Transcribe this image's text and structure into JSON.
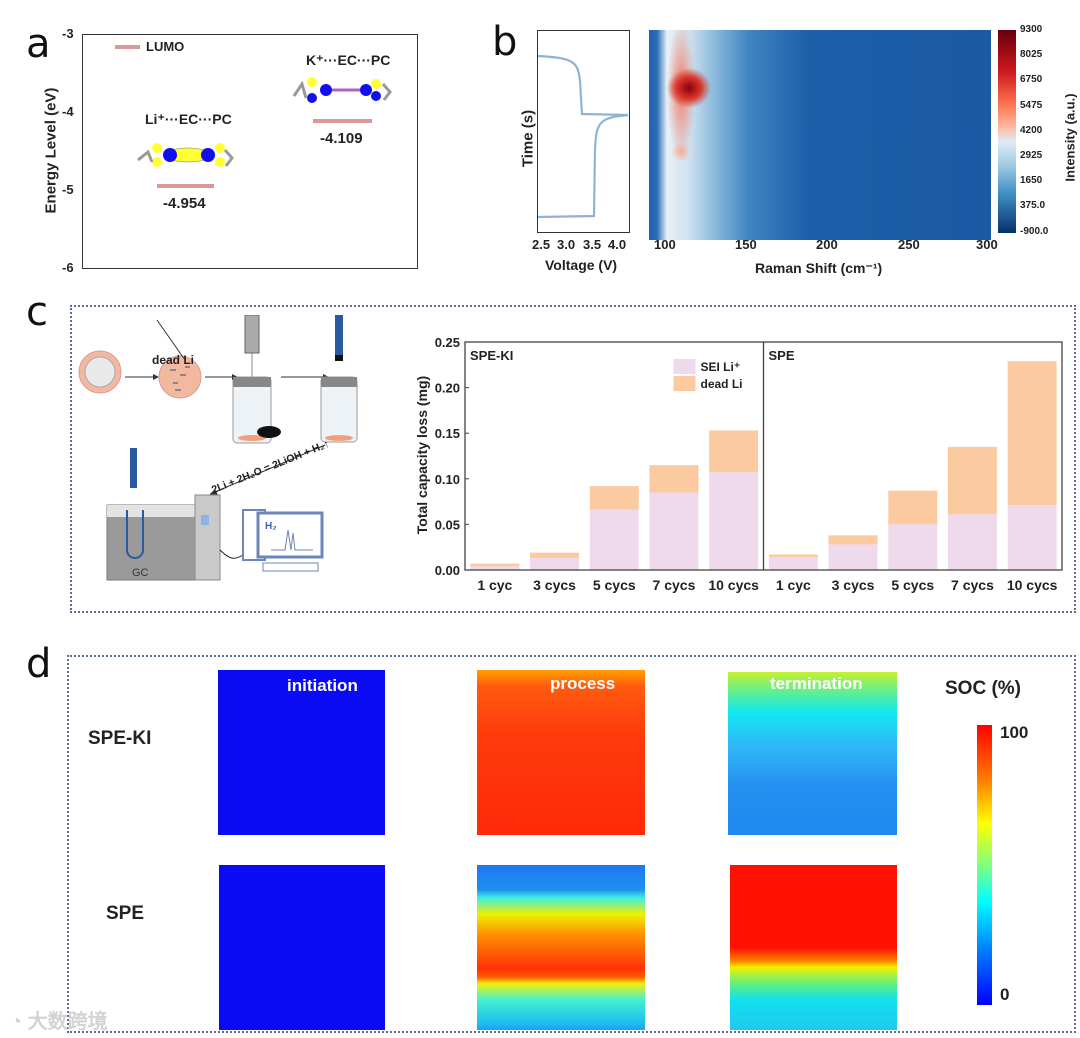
{
  "panels": {
    "a": "a",
    "b": "b",
    "c": "c",
    "d": "d"
  },
  "chart_data": [
    {
      "id": "a",
      "type": "scatter",
      "title": "",
      "ylabel": "Energy Level (eV)",
      "ylim": [
        -6,
        -3
      ],
      "yticks": [
        "-3",
        "-4",
        "-5",
        "-6"
      ],
      "legend": {
        "label": "LUMO",
        "position": "top-left",
        "color": "#d9999a"
      },
      "levels": [
        {
          "name": "Li⁺···EC···PC",
          "value": -4.954,
          "label": "-4.954"
        },
        {
          "name": "K⁺···EC···PC",
          "value": -4.109,
          "label": "-4.109"
        }
      ]
    },
    {
      "id": "b-voltage",
      "type": "line",
      "xlabel": "Voltage (V)",
      "ylabel": "Time (s)",
      "xlim": [
        2.5,
        4.2
      ],
      "xticks": [
        "2.5",
        "3.0",
        "3.5",
        "4.0"
      ],
      "color": "#8fb2d8"
    },
    {
      "id": "b-raman",
      "type": "heatmap",
      "xlabel": "Raman Shift (cm⁻¹)",
      "xlim": [
        90,
        300
      ],
      "xticks": [
        "100",
        "150",
        "200",
        "250",
        "300"
      ],
      "colorbar_label": "Intensity (a.u.)",
      "colorbar_ticks": [
        "9300",
        "8025",
        "6750",
        "5475",
        "4200",
        "2925",
        "1650",
        "375.0",
        "-900.0"
      ]
    },
    {
      "id": "c",
      "type": "bar",
      "stacked": true,
      "ylabel": "Total capacity loss (mg)",
      "ylim": [
        0,
        0.25
      ],
      "yticks": [
        "0.00",
        "0.05",
        "0.10",
        "0.15",
        "0.20",
        "0.25"
      ],
      "legend": {
        "position": "top-right",
        "entries": [
          "SEI Li⁺",
          "dead Li"
        ]
      },
      "colors": {
        "sei": "#efd9ec",
        "dead": "#fbcaa0"
      },
      "groups": [
        {
          "name": "SPE-KI",
          "categories": [
            "1 cyc",
            "3 cycs",
            "5 cycs",
            "7 cycs",
            "10 cycs"
          ],
          "series": [
            {
              "name": "SEI Li⁺",
              "values": [
                0.004,
                0.013,
                0.066,
                0.085,
                0.107
              ]
            },
            {
              "name": "dead Li",
              "values": [
                0.003,
                0.006,
                0.026,
                0.03,
                0.046
              ]
            }
          ]
        },
        {
          "name": "SPE",
          "categories": [
            "1 cyc",
            "3 cycs",
            "5 cycs",
            "7 cycs",
            "10 cycs"
          ],
          "series": [
            {
              "name": "SEI Li⁺",
              "values": [
                0.014,
                0.028,
                0.05,
                0.061,
                0.071
              ]
            },
            {
              "name": "dead Li",
              "values": [
                0.003,
                0.01,
                0.037,
                0.074,
                0.158
              ]
            }
          ]
        }
      ]
    }
  ],
  "schematic": {
    "dead_li": "dead Li",
    "reaction": "2Li + 2H₂O = 2LiOH + H₂↑",
    "gc": "GC",
    "h2": "H₂"
  },
  "soc": {
    "columns": [
      "initiation",
      "process",
      "termination"
    ],
    "rows": [
      "SPE-KI",
      "SPE"
    ],
    "colorbar_title": "SOC (%)",
    "colorbar_max": "100",
    "colorbar_min": "0"
  },
  "watermark": "大数跨境"
}
